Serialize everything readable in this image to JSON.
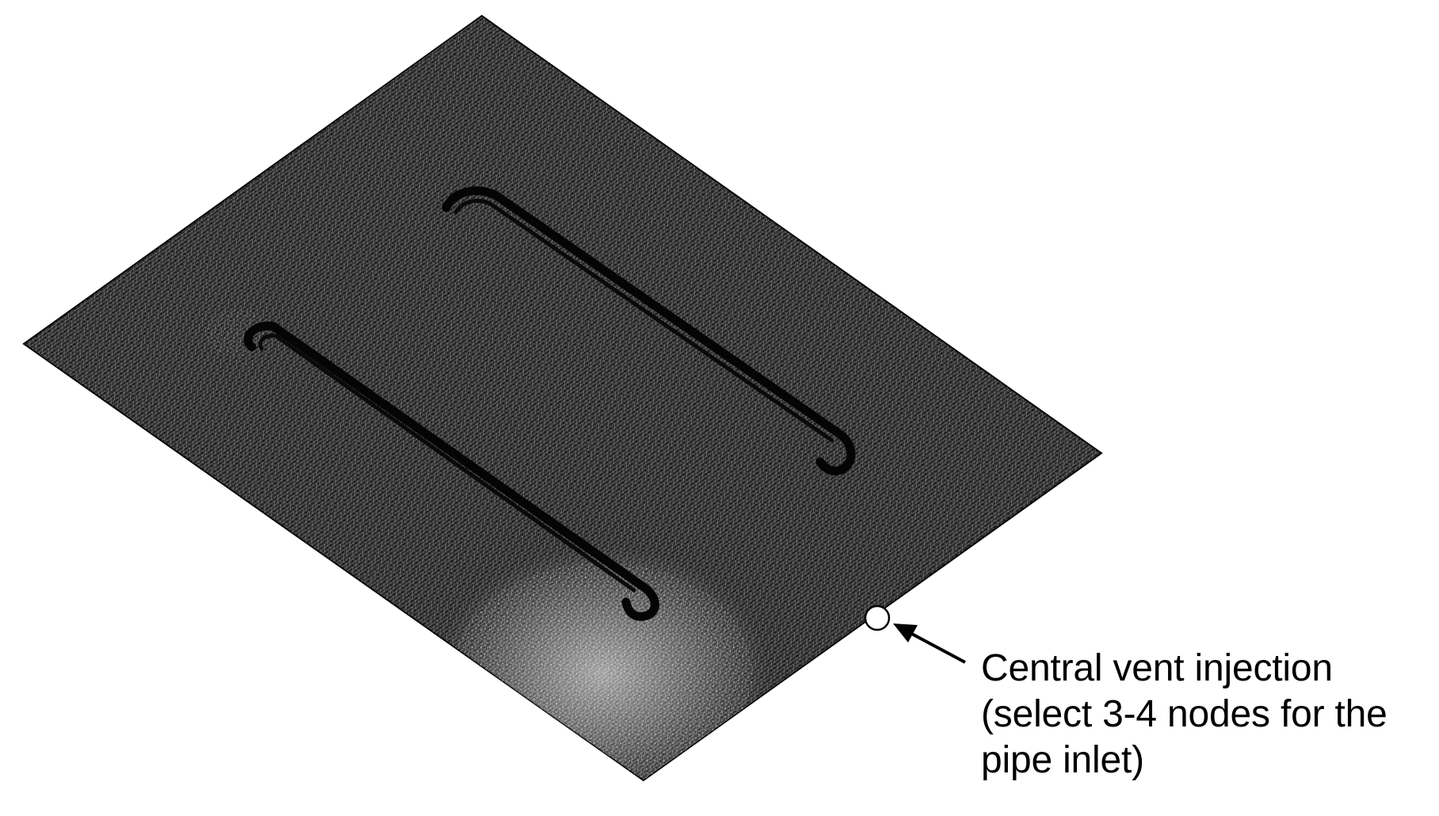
{
  "figure": {
    "annotation": {
      "lines": [
        "Central vent injection",
        "(select 3-4 nodes for the",
        "pipe inlet)"
      ]
    },
    "colors": {
      "background": "#ffffff",
      "mesh": "#1c1c1c",
      "mesh_edges": "#ffffff",
      "pipe": "#050505",
      "annotation": "#000000"
    }
  }
}
